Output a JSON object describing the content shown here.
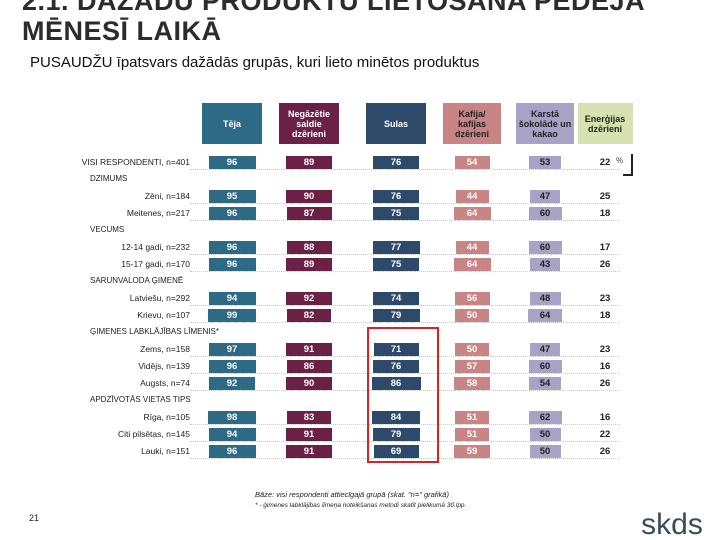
{
  "title": "2.1. DAŽĀDU PRODUKTU LIETOŠANA PĒDĒJĀ MĒNESĪ LAIKĀ",
  "subtitle": "PUSAUDŽU īpatsvars dažādās grupās, kuri lieto minētos produktus",
  "columns": [
    {
      "label": "Tēja",
      "color": "#2d6a86"
    },
    {
      "label": "Negāzētie saldie dzērieni",
      "color": "#6b2045"
    },
    {
      "label": "Sulas",
      "color": "#2e4a6b"
    },
    {
      "label": "Kafija/ kafijas dzērieni",
      "color": "#c98586"
    },
    {
      "label": "Karstā šokolāde un kakao",
      "color": "#a8a3c6"
    },
    {
      "label": "Enerģijas dzērieni",
      "color": "#d8e2b0"
    }
  ],
  "percent_sign": "%",
  "groups": [
    {
      "label": "",
      "rows": [
        {
          "label": "VISI RESPONDENTI, n=401",
          "values": [
            96,
            89,
            76,
            54,
            53,
            22
          ]
        }
      ]
    },
    {
      "label": "DZIMUMS",
      "rows": [
        {
          "label": "Zēni, n=184",
          "values": [
            95,
            90,
            76,
            44,
            47,
            25
          ]
        },
        {
          "label": "Meitenes, n=217",
          "values": [
            96,
            87,
            75,
            64,
            60,
            18
          ]
        }
      ]
    },
    {
      "label": "VECUMS",
      "rows": [
        {
          "label": "12-14 gadi, n=232",
          "values": [
            96,
            88,
            77,
            44,
            60,
            17
          ]
        },
        {
          "label": "15-17 gadi, n=170",
          "values": [
            96,
            89,
            75,
            64,
            43,
            26
          ]
        }
      ]
    },
    {
      "label": "SARUNVALODA ĢIMENĒ",
      "rows": [
        {
          "label": "Latviešu, n=292",
          "values": [
            94,
            92,
            74,
            56,
            48,
            23
          ]
        },
        {
          "label": "Krievu, n=107",
          "values": [
            99,
            82,
            79,
            50,
            64,
            18
          ]
        }
      ]
    },
    {
      "label": "ĢIMENES LABKLĀJĪBAS LĪMENIS*",
      "rows": [
        {
          "label": "Zems, n=158",
          "values": [
            97,
            91,
            71,
            50,
            47,
            23
          ]
        },
        {
          "label": "Vidējs, n=139",
          "values": [
            96,
            86,
            76,
            57,
            60,
            16
          ]
        },
        {
          "label": "Augsts, n=74",
          "values": [
            92,
            90,
            86,
            58,
            54,
            26
          ]
        }
      ]
    },
    {
      "label": "APDZĪVOTĀS VIETAS TIPS",
      "rows": [
        {
          "label": "Rīga, n=105",
          "values": [
            98,
            83,
            84,
            51,
            62,
            16
          ]
        },
        {
          "label": "Citi pilsētas, n=145",
          "values": [
            94,
            91,
            79,
            51,
            50,
            22
          ]
        },
        {
          "label": "Lauki, n=151",
          "values": [
            96,
            91,
            69,
            59,
            50,
            26
          ]
        }
      ]
    }
  ],
  "base_note": "Bāze: visi respondenti attiecīgajā grupā (skat. \"n=\" grafikā)",
  "foot_note": "* - ģimenes labklājības līmeņa noteikšanas metodi skatīt pielikumā 30.lpp.",
  "page_number": "21",
  "logo_text": "skds"
}
